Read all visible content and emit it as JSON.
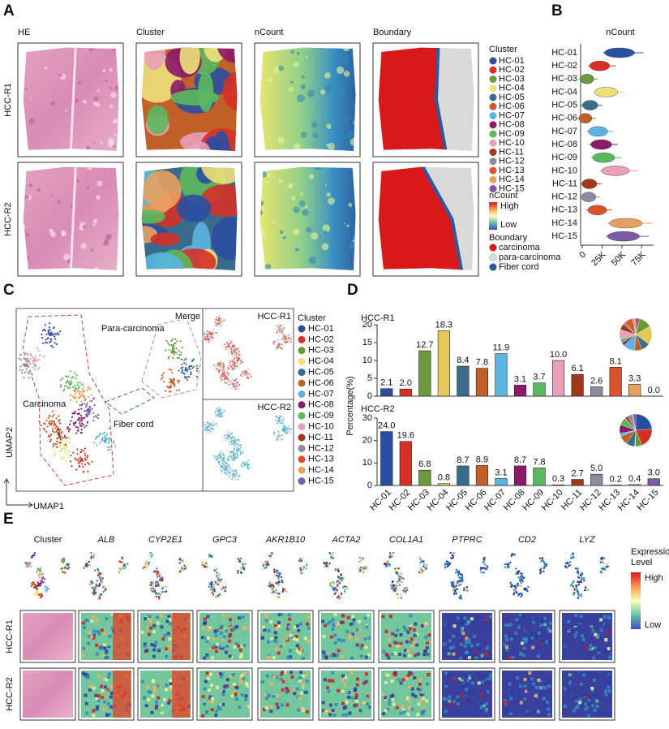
{
  "panel_a": {
    "letter": "A",
    "columns": [
      "HE",
      "Cluster",
      "nCount",
      "Boundary"
    ],
    "rows": [
      "HCC-R1",
      "HCC-R2"
    ],
    "cluster_legend_title": "Cluster",
    "ncount_legend": {
      "title": "nCount",
      "high": "High",
      "low": "Low"
    },
    "boundary_legend": {
      "title": "Boundary",
      "items": [
        {
          "label": "carcinoma",
          "color": "#d7191c"
        },
        {
          "label": "para-carcinoma",
          "color": "#d9d9d9"
        },
        {
          "label": "Fiber cord",
          "color": "#2c5aa0"
        }
      ]
    }
  },
  "panel_b": {
    "letter": "B"
  },
  "panel_c": {
    "letter": "C",
    "merge": "Merge",
    "regions": [
      "Para-carcinoma",
      "Carcinoma",
      "Fiber cord"
    ],
    "insets": [
      "HCC-R1",
      "HCC-R2"
    ],
    "legend_title": "Cluster",
    "xlabel": "UMAP1",
    "ylabel": "UMAP2"
  },
  "panel_d": {
    "letter": "D"
  },
  "panel_e": {
    "letter": "E",
    "columns": [
      "Cluster",
      "ALB",
      "CYP2E1",
      "GPC3",
      "AKR1B10",
      "ACTA2",
      "COL1A1",
      "PTPRC",
      "CD2",
      "LYZ"
    ],
    "rows": [
      "HCC-R1",
      "HCC-R2"
    ],
    "legend_title": [
      "Expression",
      "Level"
    ],
    "high": "High",
    "low": "Low"
  },
  "chart_data": [
    {
      "type": "violin",
      "title": "nCount",
      "categories": [
        "HC-01",
        "HC-02",
        "HC-03",
        "HC-04",
        "HC-05",
        "HC-06",
        "HC-07",
        "HC-08",
        "HC-09",
        "HC-10",
        "HC-11",
        "HC-12",
        "HC-13",
        "HC-14",
        "HC-15"
      ],
      "colors": [
        "#2b4fa0",
        "#d73027",
        "#6b9a3c",
        "#ede07a",
        "#3b6b8a",
        "#c2602a",
        "#5bb5e0",
        "#8b1a6b",
        "#5cb85c",
        "#e8a0b8",
        "#a0391c",
        "#8c8c9c",
        "#d9542b",
        "#e8a060",
        "#7b5aa6"
      ],
      "values": [
        47000,
        22000,
        6000,
        30000,
        10000,
        4000,
        20000,
        24000,
        27000,
        42000,
        9000,
        8000,
        19000,
        55000,
        52000
      ],
      "xlim": [
        0,
        90000
      ],
      "xticks": [
        0,
        {
          "value": 25000,
          "label": "25K"
        },
        {
          "value": 50000,
          "label": "50K"
        },
        {
          "value": 75000,
          "label": "75K"
        }
      ]
    },
    {
      "type": "bar",
      "ylabel": "Percentage(%)",
      "categories": [
        "HC-01",
        "HC-02",
        "HC-03",
        "HC-04",
        "HC-05",
        "HC-06",
        "HC-07",
        "HC-08",
        "HC-09",
        "HC-10",
        "HC-11",
        "HC-12",
        "HC-13",
        "HC-14",
        "HC-15"
      ],
      "colors": [
        "#2b4fa0",
        "#d73027",
        "#6b9a3c",
        "#e3c95a",
        "#3b6b8a",
        "#c2602a",
        "#5bb5e0",
        "#8b1a6b",
        "#5cb85c",
        "#e8a0b8",
        "#a0391c",
        "#8c8c9c",
        "#d9542b",
        "#e8a060",
        "#7b5aa6"
      ],
      "panels": [
        {
          "title": "HCC-R1",
          "values": [
            2.1,
            2.0,
            12.7,
            18.3,
            8.4,
            7.8,
            11.9,
            3.1,
            3.7,
            10.0,
            6.1,
            2.6,
            8.1,
            3.3,
            0.0
          ],
          "value_labels": [
            "2.1",
            "2.0",
            "12.7",
            "18.3",
            "8.4",
            "7.8",
            "11.9",
            "3.1",
            "3.7",
            "10.0",
            "6.1",
            "2.6",
            "8.1",
            "3.3",
            "0.0"
          ],
          "ylim": [
            0,
            20
          ],
          "yticks": [
            0,
            5,
            10,
            15,
            20
          ]
        },
        {
          "title": "HCC-R2",
          "values": [
            24.0,
            19.6,
            6.8,
            0.8,
            8.7,
            8.9,
            3.1,
            8.7,
            7.8,
            0.3,
            2.7,
            5.0,
            0.2,
            0.4,
            3.0
          ],
          "value_labels": [
            "24.0",
            "19.6",
            "6.8",
            "0.8",
            "8.7",
            "8.9",
            "3.1",
            "8.7",
            "7.8",
            "0.3",
            "2.7",
            "5.0",
            "0.2",
            "0.4",
            "3.0"
          ],
          "ylim": [
            0,
            30
          ],
          "yticks": [
            0,
            10,
            20,
            30
          ]
        }
      ]
    }
  ]
}
